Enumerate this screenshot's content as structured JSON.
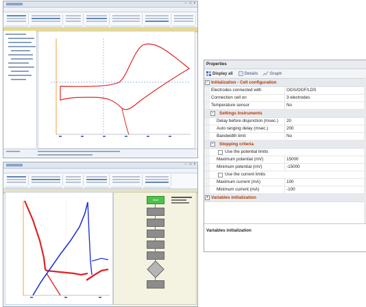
{
  "window1": {
    "title": "",
    "menu": [
      "",
      "",
      "",
      ""
    ],
    "plot_title": ""
  },
  "window2": {
    "title": "",
    "plot_title": "",
    "flow_nodes": [
      "Start",
      "",
      "",
      "",
      "",
      "",
      ""
    ]
  },
  "properties": {
    "title": "Properties",
    "toolbar": {
      "display_all": "Display all",
      "details": "Details",
      "graph": "Graph"
    },
    "sections": {
      "init": {
        "label": "Initialization - Cell configuration",
        "rows": [
          {
            "key": "Electrodes connected with",
            "value": "OGS/OGF/LDS"
          },
          {
            "key": "Connection cell on",
            "value": "3 electrodes"
          },
          {
            "key": "Temperature sensor",
            "value": "No"
          }
        ]
      },
      "settings": {
        "label": "Settings Instruments",
        "rows": [
          {
            "key": "Delay before disjunction (msec.)",
            "value": "20"
          },
          {
            "key": "Auto ranging delay (msec.)",
            "value": "200"
          },
          {
            "key": "Bandwidth limit",
            "value": "No"
          }
        ]
      },
      "stopping": {
        "label": "Stopping criteria",
        "use_potential": "Use the potential limits",
        "rows_potential": [
          {
            "key": "Maximum potential (mV)",
            "value": "15000"
          },
          {
            "key": "Minimum potential (mV)",
            "value": "-15000"
          }
        ],
        "use_current": "Use the current limits",
        "rows_current": [
          {
            "key": "Maximum current (mA)",
            "value": "100"
          },
          {
            "key": "Minimum current (mA)",
            "value": "-100"
          }
        ]
      },
      "variables": {
        "label": "Variables initialization"
      }
    },
    "description_title": "Variables initialization"
  },
  "colors": {
    "curve_red": "#e02020",
    "curve_blue": "#2030d0",
    "axis_orange": "#f0a030",
    "section_text": "#b23a00",
    "start_node": "#4cc14c"
  }
}
